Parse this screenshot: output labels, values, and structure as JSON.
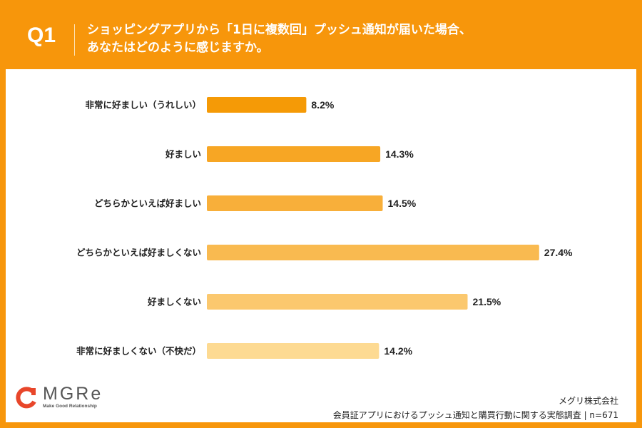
{
  "header": {
    "question_no": "Q1",
    "title_line1": "ショッピングアプリから「1日に複数回」プッシュ通知が届いた場合、",
    "title_line2": "あなたはどのように感じますか。"
  },
  "colors": {
    "frame": "#f7960b",
    "accent": "#e8462a"
  },
  "chart_data": {
    "type": "bar",
    "orientation": "horizontal",
    "categories": [
      "非常に好ましい（うれしい）",
      "好ましい",
      "どちらかといえば好ましい",
      "どちらかといえば好ましくない",
      "好ましくない",
      "非常に好ましくない（不快だ）"
    ],
    "values": [
      8.2,
      14.3,
      14.5,
      27.4,
      21.5,
      14.2
    ],
    "value_labels": [
      "8.2%",
      "14.3%",
      "14.5%",
      "27.4%",
      "21.5%",
      "14.2%"
    ],
    "bar_colors": [
      "#f59a06",
      "#f7a624",
      "#f8af3a",
      "#f9ba50",
      "#fbc86e",
      "#fdda92"
    ],
    "unit": "%",
    "grid": false,
    "legend": "none"
  },
  "footer": {
    "logo_text": "MGRe",
    "logo_tagline": "Make Good Relationship",
    "company": "メグリ株式会社",
    "source": "会員証アプリにおけるプッシュ通知と購買行動に関する実態調査 | n=671"
  }
}
